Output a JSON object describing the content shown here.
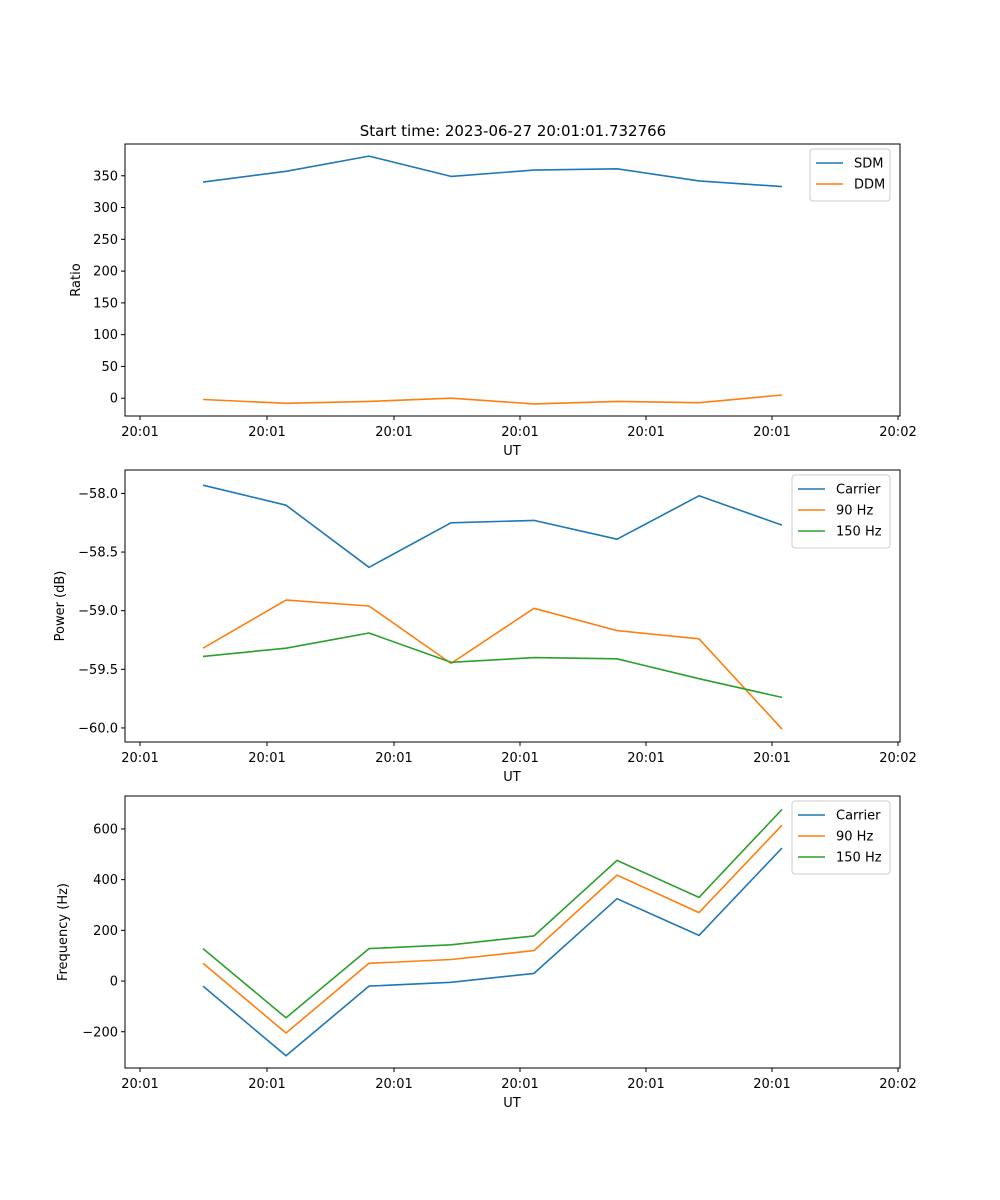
{
  "figure_title": "Start time: 2023-06-27 20:01:01.732766",
  "colors": {
    "blue": "#1f77b4",
    "orange": "#ff7f0e",
    "green": "#2ca02c"
  },
  "chart_data": [
    {
      "type": "line",
      "xlabel": "UT",
      "ylabel": "Ratio",
      "x_tick_labels": [
        "20:01",
        "20:01",
        "20:01",
        "20:01",
        "20:01",
        "20:01",
        "20:02"
      ],
      "x_index": [
        1,
        2,
        3,
        4,
        5,
        6,
        7,
        8
      ],
      "ylim": [
        -28,
        400
      ],
      "yticks": [
        0,
        50,
        100,
        150,
        200,
        250,
        300,
        350
      ],
      "legend_loc": "upper right",
      "series": [
        {
          "name": "SDM",
          "color": "#1f77b4",
          "values": [
            340,
            357,
            381,
            349,
            359,
            361,
            342,
            333
          ]
        },
        {
          "name": "DDM",
          "color": "#ff7f0e",
          "values": [
            -2,
            -8,
            -5,
            0,
            -9,
            -5,
            -7,
            5
          ]
        }
      ]
    },
    {
      "type": "line",
      "xlabel": "UT",
      "ylabel": "Power (dB)",
      "x_tick_labels": [
        "20:01",
        "20:01",
        "20:01",
        "20:01",
        "20:01",
        "20:01",
        "20:02"
      ],
      "x_index": [
        1,
        2,
        3,
        4,
        5,
        6,
        7,
        8
      ],
      "ylim": [
        -60.12,
        -57.8
      ],
      "yticks": [
        -60.0,
        -59.5,
        -59.0,
        -58.5,
        -58.0
      ],
      "ytick_labels": [
        "−60.0",
        "−59.5",
        "−59.0",
        "−58.5",
        "−58.0"
      ],
      "legend_loc": "upper right",
      "series": [
        {
          "name": "Carrier",
          "color": "#1f77b4",
          "values": [
            -57.93,
            -58.1,
            -58.63,
            -58.25,
            -58.23,
            -58.39,
            -58.02,
            -58.27
          ]
        },
        {
          "name": "90 Hz",
          "color": "#ff7f0e",
          "values": [
            -59.32,
            -58.91,
            -58.96,
            -59.45,
            -58.98,
            -59.17,
            -59.24,
            -60.01
          ]
        },
        {
          "name": "150 Hz",
          "color": "#2ca02c",
          "values": [
            -59.39,
            -59.32,
            -59.19,
            -59.44,
            -59.4,
            -59.41,
            -59.58,
            -59.74
          ]
        }
      ]
    },
    {
      "type": "line",
      "xlabel": "UT",
      "ylabel": "Frequency (Hz)",
      "x_tick_labels": [
        "20:01",
        "20:01",
        "20:01",
        "20:01",
        "20:01",
        "20:01",
        "20:02"
      ],
      "x_index": [
        1,
        2,
        3,
        4,
        5,
        6,
        7,
        8
      ],
      "ylim": [
        -343,
        730
      ],
      "yticks": [
        -200,
        0,
        200,
        400,
        600
      ],
      "ytick_labels": [
        "−200",
        "0",
        "200",
        "400",
        "600"
      ],
      "legend_loc": "upper right",
      "series": [
        {
          "name": "Carrier",
          "color": "#1f77b4",
          "values": [
            -20,
            -295,
            -20,
            -5,
            30,
            325,
            180,
            525
          ]
        },
        {
          "name": "90 Hz",
          "color": "#ff7f0e",
          "values": [
            70,
            -205,
            70,
            85,
            120,
            418,
            270,
            615
          ]
        },
        {
          "name": "150 Hz",
          "color": "#2ca02c",
          "values": [
            128,
            -145,
            128,
            143,
            178,
            476,
            330,
            677
          ]
        }
      ]
    }
  ]
}
